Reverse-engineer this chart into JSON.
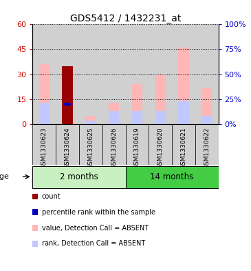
{
  "title": "GDS5412 / 1432231_at",
  "samples": [
    "GSM1330623",
    "GSM1330624",
    "GSM1330625",
    "GSM1330626",
    "GSM1330619",
    "GSM1330620",
    "GSM1330621",
    "GSM1330622"
  ],
  "value_absent": [
    36,
    0,
    5,
    13,
    24,
    30,
    46,
    22
  ],
  "rank_absent": [
    13,
    13,
    2,
    8,
    8,
    8,
    14,
    5
  ],
  "count_bar": [
    0,
    35,
    0,
    0,
    0,
    0,
    0,
    0
  ],
  "percentile_bar": [
    0,
    13,
    0,
    0,
    0,
    0,
    0,
    0
  ],
  "ylim_left": [
    0,
    60
  ],
  "ylim_right": [
    0,
    100
  ],
  "yticks_left": [
    0,
    15,
    30,
    45,
    60
  ],
  "yticks_right": [
    0,
    25,
    50,
    75,
    100
  ],
  "ytick_labels_left": [
    "0",
    "15",
    "30",
    "45",
    "60"
  ],
  "ytick_labels_right": [
    "0%",
    "25%",
    "50%",
    "75%",
    "100%"
  ],
  "color_value_absent": "#FFB6B6",
  "color_rank_absent": "#C0C8FF",
  "color_count": "#990000",
  "color_percentile": "#0000BB",
  "color_left_axis": "#CC0000",
  "color_right_axis": "#0000CC",
  "bg_col_gray": "#D0D0D0",
  "group1_label": "2 months",
  "group2_label": "14 months",
  "group1_color": "#C8F0C0",
  "group2_color": "#44CC44",
  "group1_indices": [
    0,
    1,
    2,
    3
  ],
  "group2_indices": [
    4,
    5,
    6,
    7
  ],
  "bar_width": 0.45,
  "rank_bar_width": 0.45,
  "legend_items": [
    {
      "color": "#990000",
      "label": "count"
    },
    {
      "color": "#0000BB",
      "label": "percentile rank within the sample"
    },
    {
      "color": "#FFB6B6",
      "label": "value, Detection Call = ABSENT"
    },
    {
      "color": "#C0C8FF",
      "label": "rank, Detection Call = ABSENT"
    }
  ]
}
